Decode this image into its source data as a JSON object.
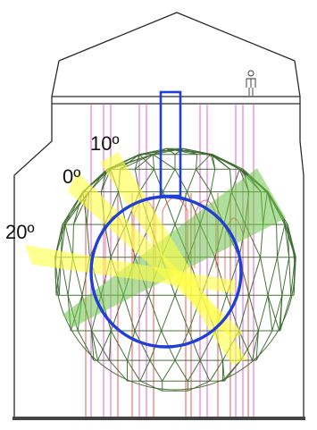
{
  "labels": {
    "angle_10": "10º",
    "angle_0": "0º",
    "angle_20": "20º"
  },
  "colors": {
    "building_outline": "#2b2b2b",
    "sphere_outline": "#1f3fd6",
    "dome_mesh": "#3d6b2e",
    "beam_yellow": "#ffff44",
    "beam_green": "#6fc34a",
    "vertical_lines_pink": "#e060e0",
    "vertical_lines_red": "#e04848",
    "ground": "#444444"
  },
  "icons": {
    "person": "person-icon"
  }
}
